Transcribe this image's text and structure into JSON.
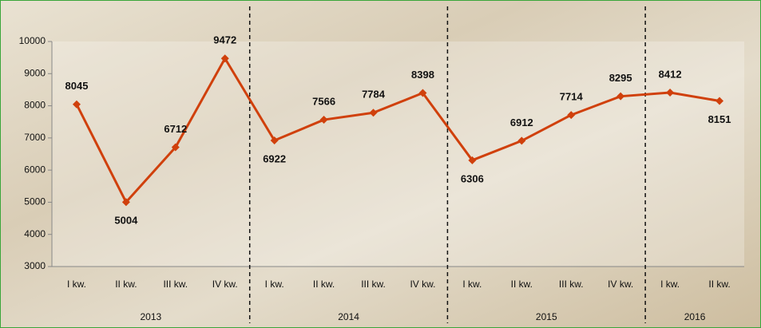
{
  "chart_data": {
    "type": "line",
    "categories": [
      "I kw.",
      "II kw.",
      "III kw.",
      "IV kw.",
      "I kw.",
      "II kw.",
      "III kw.",
      "IV kw.",
      "I kw.",
      "II kw.",
      "III kw.",
      "IV kw.",
      "I kw.",
      "II kw."
    ],
    "groups": [
      "2013",
      "2014",
      "2015",
      "2016"
    ],
    "values": [
      8045,
      5004,
      6712,
      9472,
      6922,
      7566,
      7784,
      8398,
      6306,
      6912,
      7714,
      8295,
      8412,
      8151
    ],
    "color": "#d0400c",
    "ylim": [
      3000,
      10000
    ],
    "yticks": [
      3000,
      4000,
      5000,
      6000,
      7000,
      8000,
      9000,
      10000
    ],
    "grid": false
  }
}
